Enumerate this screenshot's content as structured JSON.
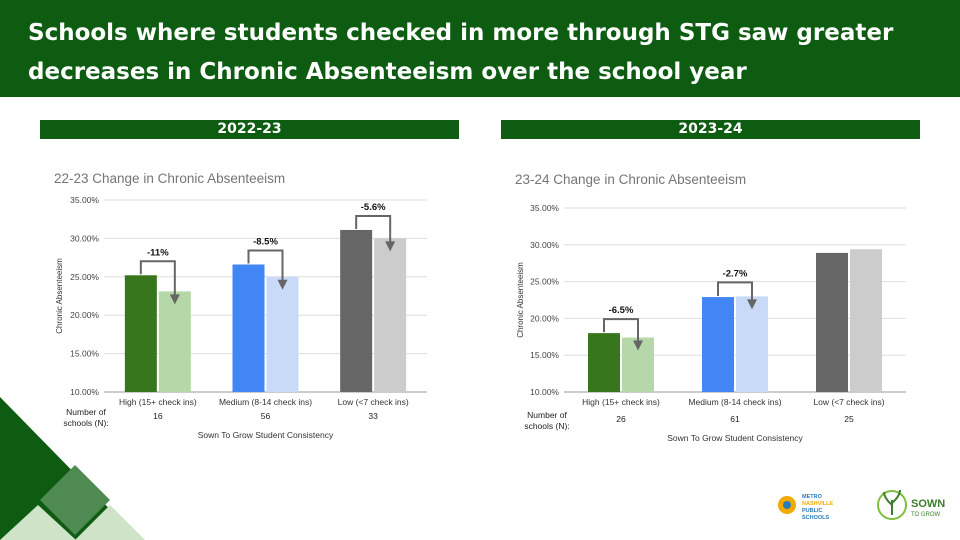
{
  "header": {
    "title": "Schools where students checked in more through STG saw greater decreases in Chronic Absenteeism over the school year"
  },
  "colors": {
    "header_bg": "#0e5c12",
    "high_before": "#38761d",
    "high_after": "#b6d7a8",
    "medium_before": "#4285f4",
    "medium_after": "#c9daf8",
    "low_before": "#666666",
    "low_after": "#cccccc",
    "deco_dark": "#0e5c12",
    "deco_mid": "#4f8a53",
    "deco_light": "#cfe3c8"
  },
  "panels": [
    {
      "label": "2022-23",
      "chart_data": {
        "type": "bar",
        "title": "22-23 Change in Chronic Absenteeism",
        "xlabel": "Sown To Grow Student Consistency",
        "ylabel": "Chronic Absenteeism",
        "ylim": [
          10,
          35
        ],
        "yticks": [
          "10.00%",
          "15.00%",
          "20.00%",
          "25.00%",
          "30.00%",
          "35.00%"
        ],
        "grid": true,
        "categories": [
          "High (15+ check ins)",
          "Medium (8-14 check ins)",
          "Low (<7 check ins)"
        ],
        "start_values": [
          25.2,
          26.6,
          31.1
        ],
        "end_values": [
          23.1,
          25.0,
          30.0
        ],
        "annotations": [
          "-11%",
          "-8.5%",
          "-5.6%"
        ],
        "n_label": "Number of schools (N):",
        "n_values": [
          "16",
          "56",
          "33"
        ]
      }
    },
    {
      "label": "2023-24",
      "chart_data": {
        "type": "bar",
        "title": "23-24 Change in Chronic Absenteeism",
        "xlabel": "Sown To Grow Student Consistency",
        "ylabel": "Chronic Absenteeism",
        "ylim": [
          10,
          35
        ],
        "yticks": [
          "10.00%",
          "15.00%",
          "20.00%",
          "25.00%",
          "30.00%",
          "35.00%"
        ],
        "grid": true,
        "categories": [
          "High (15+ check ins)",
          "Medium (8-14 check ins)",
          "Low (<7 check ins)"
        ],
        "start_values": [
          18.0,
          22.9,
          28.9
        ],
        "end_values": [
          17.4,
          23.0,
          29.4
        ],
        "annotations": [
          "-6.5%",
          "-2.7%",
          ""
        ],
        "n_label": "Number of schools (N):",
        "n_values": [
          "26",
          "61",
          "25"
        ]
      }
    }
  ],
  "logos": {
    "mnps": [
      "METRO",
      "NASHVILLE",
      "PUBLIC",
      "SCHOOLS"
    ],
    "stg": [
      "SOWN",
      "TO GROW"
    ]
  }
}
